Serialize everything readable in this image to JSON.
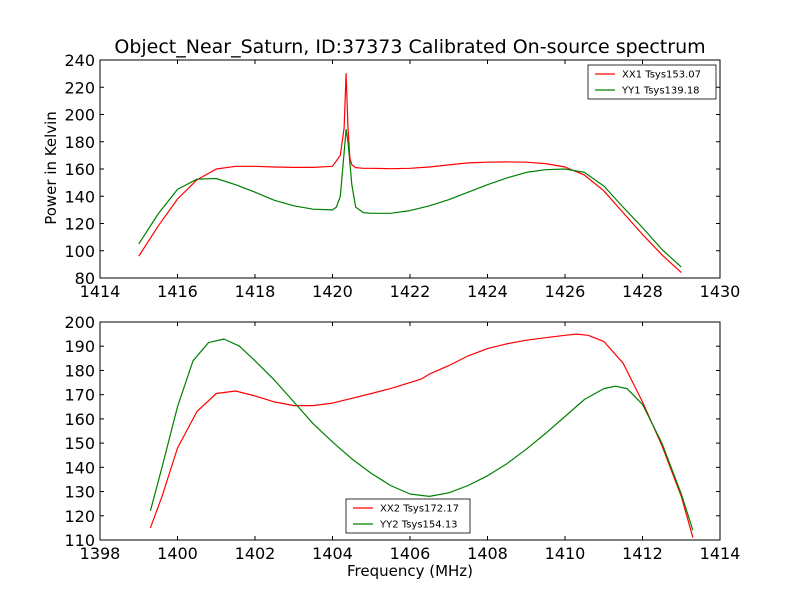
{
  "chart_data": [
    {
      "type": "line",
      "title": "Object_Near_Saturn, ID:37373 Calibrated On-source spectrum",
      "xlabel": "",
      "ylabel": "Power in Kelvin",
      "xlim": [
        1414,
        1430
      ],
      "ylim": [
        80,
        240
      ],
      "xticks": [
        1414,
        1416,
        1418,
        1420,
        1422,
        1424,
        1426,
        1428,
        1430
      ],
      "yticks": [
        80,
        100,
        120,
        140,
        160,
        180,
        200,
        220,
        240
      ],
      "grid": false,
      "legend_position": "top-right",
      "series": [
        {
          "name": "XX1 Tsys153.07",
          "color": "#ff0000",
          "x": [
            1415.0,
            1415.5,
            1416.0,
            1416.5,
            1417.0,
            1417.5,
            1418.0,
            1418.5,
            1419.0,
            1419.5,
            1420.0,
            1420.2,
            1420.3,
            1420.35,
            1420.4,
            1420.45,
            1420.5,
            1420.6,
            1420.8,
            1421.0,
            1421.5,
            1422.0,
            1422.5,
            1423.0,
            1423.5,
            1424.0,
            1424.5,
            1425.0,
            1425.5,
            1426.0,
            1426.5,
            1427.0,
            1427.5,
            1428.0,
            1428.5,
            1429.0
          ],
          "y": [
            96,
            118,
            138,
            152,
            160,
            162,
            162,
            161.5,
            161.2,
            161.2,
            162,
            170,
            190,
            230,
            190,
            168,
            163,
            161,
            160.5,
            160.5,
            160.2,
            160.5,
            161.5,
            163,
            164.5,
            165,
            165.2,
            165,
            164,
            161.5,
            155.5,
            144,
            128,
            112,
            97,
            84
          ]
        },
        {
          "name": "YY1 Tsys139.18",
          "color": "#008000",
          "x": [
            1415.0,
            1415.5,
            1416.0,
            1416.5,
            1417.0,
            1417.5,
            1418.0,
            1418.5,
            1419.0,
            1419.5,
            1420.0,
            1420.1,
            1420.2,
            1420.3,
            1420.35,
            1420.4,
            1420.5,
            1420.6,
            1420.8,
            1421.0,
            1421.5,
            1422.0,
            1422.5,
            1423.0,
            1423.5,
            1424.0,
            1424.5,
            1425.0,
            1425.5,
            1426.0,
            1426.5,
            1427.0,
            1427.5,
            1428.0,
            1428.5,
            1429.0
          ],
          "y": [
            105,
            127,
            145,
            152.5,
            153,
            148.5,
            143,
            137,
            133,
            130.5,
            130,
            132,
            140,
            172,
            189,
            180,
            148,
            132,
            128,
            127.5,
            127.5,
            129.5,
            133,
            137.5,
            143,
            148.5,
            153.5,
            157.5,
            159.5,
            160,
            157.5,
            147.5,
            132,
            117,
            101,
            88
          ]
        }
      ]
    },
    {
      "type": "line",
      "title": "",
      "xlabel": "Frequency (MHz)",
      "ylabel": "",
      "xlim": [
        1398,
        1414
      ],
      "ylim": [
        110,
        200
      ],
      "xticks": [
        1398,
        1400,
        1402,
        1404,
        1406,
        1408,
        1410,
        1412,
        1414
      ],
      "yticks": [
        110,
        120,
        130,
        140,
        150,
        160,
        170,
        180,
        190,
        200
      ],
      "grid": false,
      "legend_position": "bottom-center",
      "series": [
        {
          "name": "XX2 Tsys172.17",
          "color": "#ff0000",
          "x": [
            1399.3,
            1399.6,
            1400.0,
            1400.5,
            1401.0,
            1401.5,
            1402.0,
            1402.5,
            1403.0,
            1403.5,
            1404.0,
            1404.5,
            1405.0,
            1405.5,
            1406.0,
            1406.3,
            1406.5,
            1407.0,
            1407.5,
            1408.0,
            1408.5,
            1409.0,
            1409.5,
            1410.0,
            1410.3,
            1410.6,
            1411.0,
            1411.5,
            1412.0,
            1412.5,
            1413.0,
            1413.3
          ],
          "y": [
            115,
            128,
            148,
            163,
            170.5,
            171.5,
            169.5,
            167,
            165.5,
            165.5,
            166.5,
            168.5,
            170.5,
            172.5,
            175,
            176.5,
            178.5,
            182,
            186,
            189,
            191,
            192.5,
            193.5,
            194.5,
            195,
            194.5,
            192,
            183,
            167,
            149,
            128,
            111
          ]
        },
        {
          "name": "YY2 Tsys154.13",
          "color": "#008000",
          "x": [
            1399.3,
            1399.6,
            1400.0,
            1400.4,
            1400.8,
            1401.2,
            1401.6,
            1402.0,
            1402.5,
            1403.0,
            1403.5,
            1404.0,
            1404.5,
            1405.0,
            1405.5,
            1406.0,
            1406.5,
            1407.0,
            1407.5,
            1408.0,
            1408.5,
            1409.0,
            1409.5,
            1410.0,
            1410.5,
            1411.0,
            1411.3,
            1411.6,
            1412.0,
            1412.5,
            1413.0,
            1413.3
          ],
          "y": [
            122,
            140,
            165,
            184,
            191.5,
            193,
            190,
            184,
            176,
            167,
            158,
            150.5,
            143.5,
            137.5,
            132.5,
            129,
            128,
            129.5,
            132.5,
            136.5,
            141.5,
            147.5,
            154,
            161,
            168,
            172.5,
            173.5,
            172.5,
            166,
            150,
            129,
            114
          ]
        }
      ]
    }
  ]
}
